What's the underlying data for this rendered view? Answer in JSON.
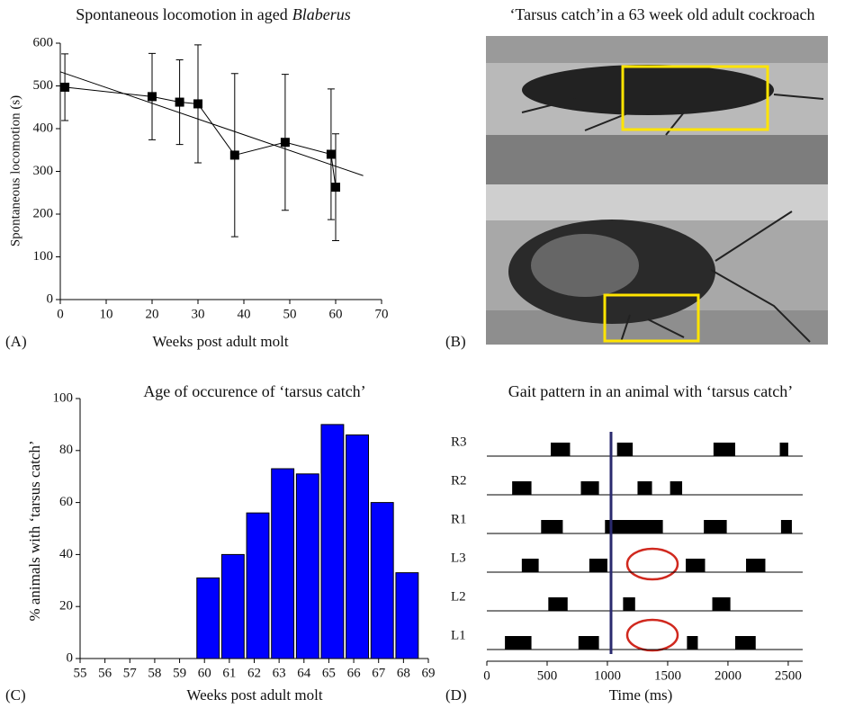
{
  "chart_data": [
    {
      "type": "line",
      "label": "(A)",
      "title": "Spontaneous locomotion in aged",
      "title_italic": "Blaberus",
      "xlabel": "Weeks post adult molt",
      "ylabel": "Spontaneous locomotion (s)",
      "x": [
        1,
        20,
        26,
        30,
        38,
        49,
        59,
        60
      ],
      "values": [
        497,
        475,
        462,
        458,
        338,
        368,
        340,
        263
      ],
      "errors": [
        78,
        101,
        99,
        138,
        191,
        159,
        153,
        125
      ],
      "color": "#000000",
      "trendline": {
        "x": [
          0,
          66
        ],
        "values": [
          533,
          290
        ]
      },
      "xlim": [
        0,
        70
      ],
      "xticks": [
        0,
        10,
        20,
        30,
        40,
        50,
        60,
        70
      ],
      "ylim": [
        0,
        600
      ],
      "yticks": [
        0,
        100,
        200,
        300,
        400,
        500,
        600
      ]
    },
    {
      "type": "bar",
      "label": "(C)",
      "title": "Age of occurence of ‘tarsus catch’",
      "xlabel": "Weeks post adult molt",
      "ylabel": "% animals with ‘tarsus catch’",
      "x": [
        60,
        61,
        62,
        63,
        64,
        65,
        66,
        67,
        68
      ],
      "values": [
        31,
        40,
        56,
        73,
        71,
        90,
        86,
        60,
        33
      ],
      "color": "#0000ff",
      "xlim": [
        55,
        69
      ],
      "xticks": [
        55,
        56,
        57,
        58,
        59,
        60,
        61,
        62,
        63,
        64,
        65,
        66,
        67,
        68,
        69
      ],
      "ylim": [
        0,
        100
      ],
      "yticks": [
        0,
        20,
        40,
        60,
        80,
        100
      ]
    },
    {
      "type": "gait",
      "label": "(D)",
      "title": "Gait pattern in an animal with ‘tarsus catch’",
      "xlabel": "Time (ms)",
      "color": "#000000",
      "vline": 1030,
      "vline_color": "#2a2a6e",
      "rows": [
        {
          "label": "R3",
          "intervals": [
            [
              530,
              690
            ],
            [
              1080,
              1210
            ],
            [
              1880,
              2060
            ],
            [
              2430,
              2500
            ]
          ]
        },
        {
          "label": "R2",
          "intervals": [
            [
              210,
              370
            ],
            [
              780,
              930
            ],
            [
              1250,
              1370
            ],
            [
              1520,
              1620
            ]
          ]
        },
        {
          "label": "R1",
          "intervals": [
            [
              450,
              630
            ],
            [
              980,
              1460
            ],
            [
              1800,
              1990
            ],
            [
              2440,
              2530
            ]
          ]
        },
        {
          "label": "L3",
          "intervals": [
            [
              290,
              430
            ],
            [
              850,
              1000
            ],
            [
              1650,
              1810
            ],
            [
              2150,
              2310
            ]
          ]
        },
        {
          "label": "L2",
          "intervals": [
            [
              510,
              670
            ],
            [
              1130,
              1230
            ],
            [
              1870,
              2020
            ]
          ]
        },
        {
          "label": "L1",
          "intervals": [
            [
              150,
              370
            ],
            [
              760,
              930
            ],
            [
              1660,
              1750
            ],
            [
              2060,
              2230
            ]
          ]
        }
      ],
      "xlim": [
        0,
        2620
      ],
      "xticks": [
        0,
        500,
        1000,
        1500,
        2000,
        2500
      ]
    }
  ],
  "photo_panel": {
    "label": "(B)",
    "title": "‘Tarsus catch’in a 63 week old adult cockroach"
  }
}
